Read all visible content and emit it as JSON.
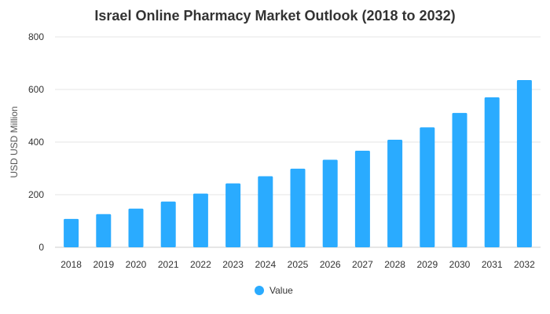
{
  "chart_data": {
    "type": "bar",
    "title": "Israel Online Pharmacy Market Outlook (2018 to 2032)",
    "xlabel": "",
    "ylabel": "USD USD Million",
    "ylim": [
      0,
      800
    ],
    "yticks": [
      0,
      200,
      400,
      600,
      800
    ],
    "grid": true,
    "legend_position": "bottom",
    "categories": [
      "2018",
      "2019",
      "2020",
      "2021",
      "2022",
      "2023",
      "2024",
      "2025",
      "2026",
      "2027",
      "2028",
      "2029",
      "2030",
      "2031",
      "2032"
    ],
    "series": [
      {
        "name": "Value",
        "color": "#2aabff",
        "values": [
          108,
          126,
          147,
          174,
          204,
          243,
          270,
          299,
          333,
          367,
          409,
          456,
          511,
          570,
          636
        ]
      }
    ]
  }
}
